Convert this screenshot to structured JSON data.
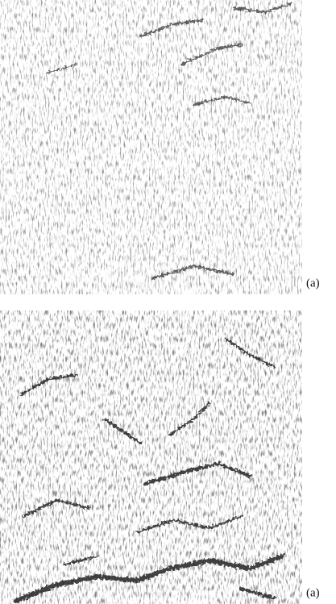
{
  "panels": [
    {
      "label": "(a)"
    },
    {
      "label": "(a)"
    }
  ]
}
